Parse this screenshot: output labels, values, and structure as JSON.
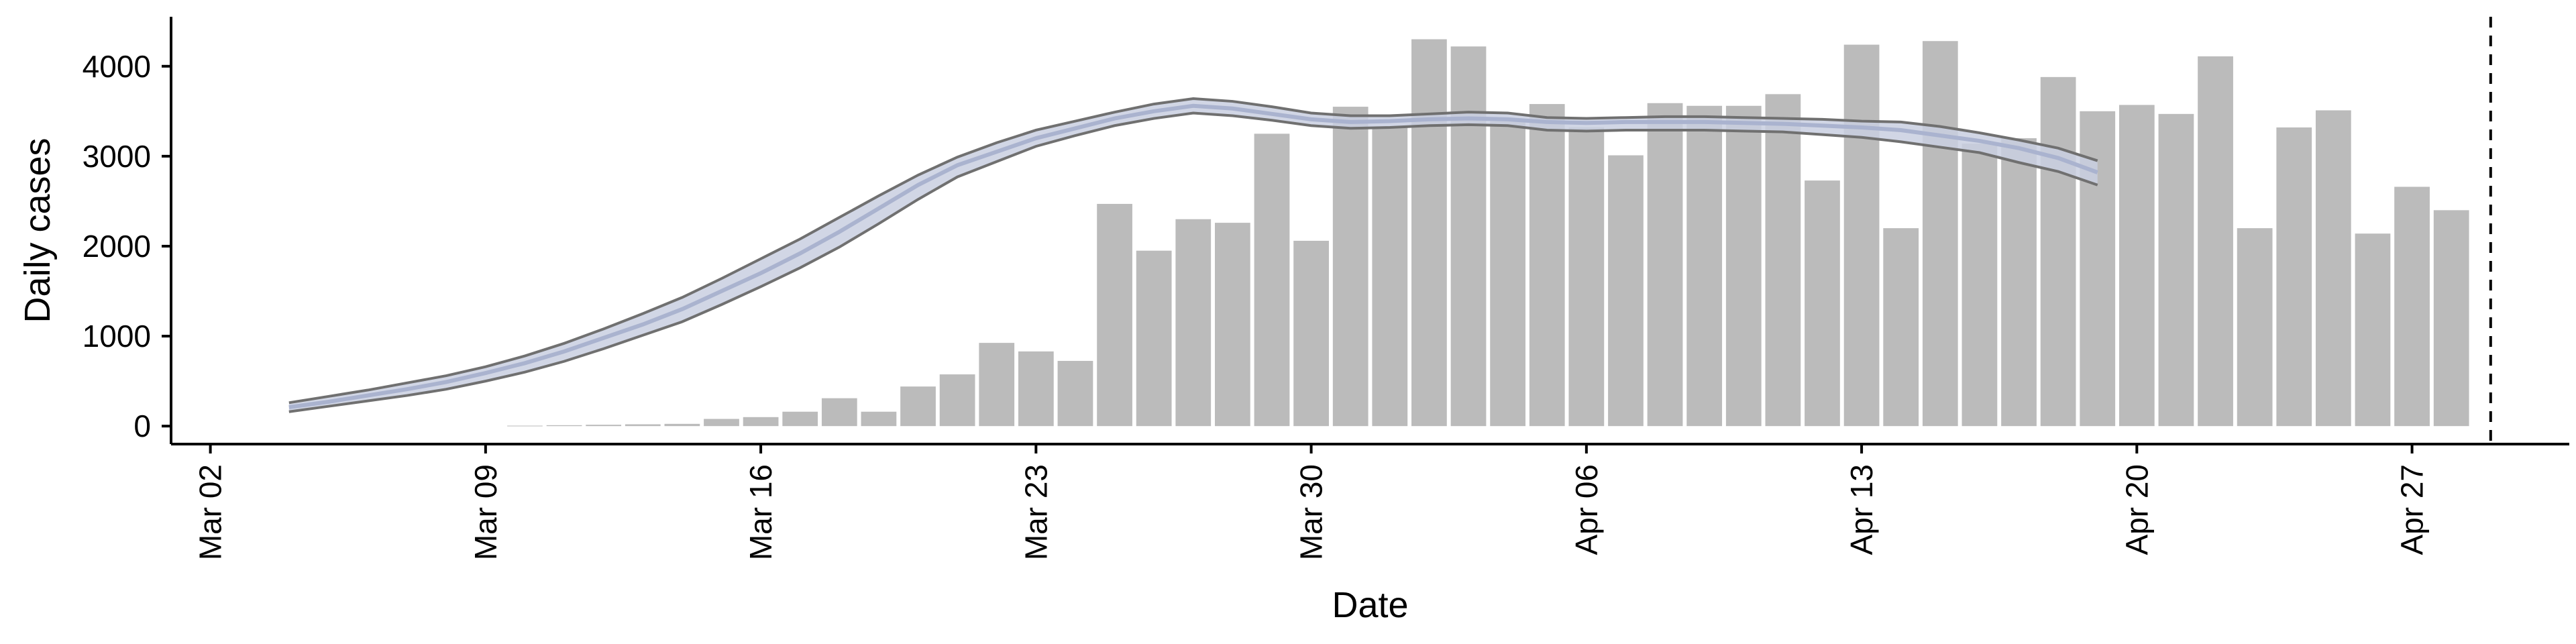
{
  "chart_data": {
    "type": "bar",
    "xlabel": "Date",
    "ylabel": "Daily cases",
    "ylim": [
      -200,
      4550
    ],
    "xlim": [
      "2020-03-01",
      "2020-05-01"
    ],
    "yticks": [
      0,
      1000,
      2000,
      3000,
      4000
    ],
    "xticks": [
      {
        "date": "2020-03-02",
        "label": "Mar 02"
      },
      {
        "date": "2020-03-09",
        "label": "Mar 09"
      },
      {
        "date": "2020-03-16",
        "label": "Mar 16"
      },
      {
        "date": "2020-03-23",
        "label": "Mar 23"
      },
      {
        "date": "2020-03-30",
        "label": "Mar 30"
      },
      {
        "date": "2020-04-06",
        "label": "Apr 06"
      },
      {
        "date": "2020-04-13",
        "label": "Apr 13"
      },
      {
        "date": "2020-04-20",
        "label": "Apr 20"
      },
      {
        "date": "2020-04-27",
        "label": "Apr 27"
      }
    ],
    "bars": {
      "start_date": "2020-03-10",
      "values": [
        5,
        10,
        15,
        20,
        25,
        80,
        100,
        160,
        310,
        160,
        440,
        575,
        925,
        830,
        725,
        2470,
        1950,
        2300,
        2260,
        3250,
        2060,
        3550,
        3325,
        4300,
        4220,
        3390,
        3580,
        3320,
        3010,
        3590,
        3560,
        3560,
        3690,
        2730,
        4240,
        2200,
        4280,
        3140,
        3200,
        3880,
        3500,
        3570,
        3470,
        4110,
        2200,
        3320,
        3510,
        2140,
        2660,
        2400
      ]
    },
    "nowcast": {
      "dates": [
        "2020-03-04",
        "2020-03-05",
        "2020-03-06",
        "2020-03-07",
        "2020-03-08",
        "2020-03-09",
        "2020-03-10",
        "2020-03-11",
        "2020-03-12",
        "2020-03-13",
        "2020-03-14",
        "2020-03-15",
        "2020-03-16",
        "2020-03-17",
        "2020-03-18",
        "2020-03-19",
        "2020-03-20",
        "2020-03-21",
        "2020-03-22",
        "2020-03-23",
        "2020-03-24",
        "2020-03-25",
        "2020-03-26",
        "2020-03-27",
        "2020-03-28",
        "2020-03-29",
        "2020-03-30",
        "2020-03-31",
        "2020-04-01",
        "2020-04-02",
        "2020-04-03",
        "2020-04-04",
        "2020-04-05",
        "2020-04-06",
        "2020-04-07",
        "2020-04-08",
        "2020-04-09",
        "2020-04-10",
        "2020-04-11",
        "2020-04-12",
        "2020-04-13",
        "2020-04-14",
        "2020-04-15",
        "2020-04-16",
        "2020-04-17",
        "2020-04-18",
        "2020-04-19"
      ],
      "median": [
        210,
        270,
        340,
        410,
        490,
        590,
        700,
        830,
        980,
        1130,
        1300,
        1500,
        1700,
        1920,
        2160,
        2420,
        2680,
        2900,
        3050,
        3200,
        3310,
        3420,
        3500,
        3560,
        3530,
        3470,
        3410,
        3380,
        3390,
        3410,
        3420,
        3410,
        3380,
        3370,
        3380,
        3380,
        3380,
        3370,
        3360,
        3340,
        3320,
        3290,
        3230,
        3170,
        3090,
        2980,
        2820
      ],
      "upper": [
        260,
        330,
        400,
        480,
        560,
        660,
        780,
        920,
        1080,
        1250,
        1430,
        1640,
        1860,
        2080,
        2320,
        2560,
        2790,
        2990,
        3150,
        3290,
        3390,
        3490,
        3580,
        3640,
        3610,
        3550,
        3480,
        3450,
        3450,
        3470,
        3490,
        3480,
        3430,
        3420,
        3430,
        3440,
        3440,
        3430,
        3420,
        3410,
        3390,
        3380,
        3330,
        3260,
        3180,
        3090,
        2950
      ],
      "lower": [
        160,
        220,
        280,
        340,
        410,
        500,
        600,
        720,
        860,
        1010,
        1160,
        1350,
        1550,
        1760,
        1990,
        2250,
        2520,
        2770,
        2940,
        3110,
        3230,
        3340,
        3420,
        3480,
        3450,
        3400,
        3340,
        3310,
        3320,
        3340,
        3350,
        3340,
        3290,
        3280,
        3290,
        3290,
        3290,
        3280,
        3270,
        3240,
        3210,
        3160,
        3100,
        3040,
        2930,
        2830,
        2680
      ]
    },
    "marker_date": "2020-04-29"
  }
}
